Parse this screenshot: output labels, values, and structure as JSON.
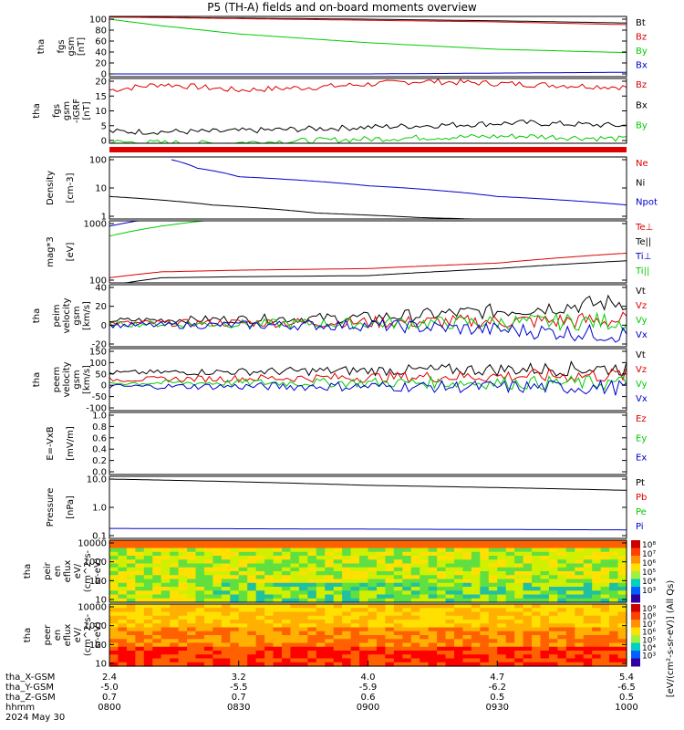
{
  "title": "P5 (TH-A) fields and on-board moments overview",
  "colors": {
    "black": "#000000",
    "red": "#dd0000",
    "green": "#00cc00",
    "blue": "#0000cc"
  },
  "chart_data": [
    {
      "type": "line",
      "ylabel_lines": [
        "tha",
        "fgs",
        "gsm",
        "[nT]"
      ],
      "yticks": [
        "100",
        "80",
        "60",
        "40",
        "20",
        "0"
      ],
      "legend": [
        {
          "label": "Bt",
          "color": "black"
        },
        {
          "label": "Bz",
          "color": "red"
        },
        {
          "label": "By",
          "color": "green"
        },
        {
          "label": "Bx",
          "color": "blue"
        }
      ],
      "series": [
        {
          "color": "black",
          "x": [
            0,
            0.25,
            0.5,
            0.75,
            1
          ],
          "y": [
            104,
            102,
            100,
            97,
            93
          ]
        },
        {
          "color": "red",
          "x": [
            0,
            0.25,
            0.5,
            0.75,
            1
          ],
          "y": [
            104,
            101,
            98,
            95,
            90
          ]
        },
        {
          "color": "green",
          "x": [
            0,
            0.1,
            0.25,
            0.5,
            0.75,
            1
          ],
          "y": [
            100,
            88,
            73,
            57,
            45,
            39
          ]
        },
        {
          "color": "blue",
          "x": [
            0,
            0.5,
            1
          ],
          "y": [
            0,
            0,
            3
          ]
        }
      ]
    },
    {
      "type": "line",
      "ylabel_lines": [
        "tha",
        "fgs",
        "gsm",
        "-IGRF",
        "[nT]"
      ],
      "yticks": [
        "20",
        "15",
        "10",
        "5",
        "0"
      ],
      "legend": [
        {
          "label": "Bz",
          "color": "red"
        },
        {
          "label": "Bx",
          "color": "black"
        },
        {
          "label": "By",
          "color": "green"
        }
      ],
      "series": [
        {
          "color": "red",
          "x": [
            0,
            0.1,
            0.25,
            0.4,
            0.6,
            0.8,
            1
          ],
          "y": [
            17,
            19,
            17,
            18,
            20,
            19,
            18
          ]
        },
        {
          "color": "black",
          "x": [
            0,
            0.2,
            0.4,
            0.6,
            0.8,
            1
          ],
          "y": [
            3,
            3,
            4,
            5,
            6,
            5
          ]
        },
        {
          "color": "green",
          "x": [
            0,
            0.2,
            0.4,
            0.6,
            0.8,
            1
          ],
          "y": [
            -0.5,
            -1,
            0,
            1,
            1.5,
            0.5
          ]
        }
      ]
    },
    {
      "type": "line",
      "ylabel_lines": [
        "Density",
        "[cm-3]"
      ],
      "yticks": [
        "100",
        "10",
        "1"
      ],
      "ylog": true,
      "legend": [
        {
          "label": "Ne",
          "color": "red"
        },
        {
          "label": "Ni",
          "color": "black"
        },
        {
          "label": "Npot",
          "color": "blue"
        }
      ],
      "series": [
        {
          "color": "blue",
          "x": [
            0.12,
            0.17,
            0.25,
            0.5,
            0.75,
            1
          ],
          "y": [
            100,
            50,
            25,
            12,
            5,
            2.5
          ]
        },
        {
          "color": "black",
          "x": [
            0,
            0.2,
            0.4,
            0.6,
            0.8,
            1
          ],
          "y": [
            5,
            2.5,
            1.3,
            0.9,
            0.7,
            0.6
          ]
        },
        {
          "color": "red",
          "x": [
            0,
            0.2,
            0.4,
            0.6,
            0.8,
            1
          ],
          "y": [
            0.5,
            0.55,
            0.7,
            0.65,
            0.6,
            0.65
          ]
        }
      ]
    },
    {
      "type": "line",
      "ylabel_lines": [
        "mag*3",
        "[eV]"
      ],
      "yticks": [
        "1000",
        "100"
      ],
      "ylog": true,
      "legend": [
        {
          "label": "Te⊥",
          "color": "red"
        },
        {
          "label": "Te||",
          "color": "black"
        },
        {
          "label": "Ti⊥",
          "color": "blue"
        },
        {
          "label": "Ti||",
          "color": "green"
        }
      ],
      "series": [
        {
          "color": "blue",
          "x": [
            0,
            0.1,
            0.25,
            0.5,
            0.75,
            1
          ],
          "y": [
            900,
            1300,
            1800,
            2100,
            2300,
            2400
          ]
        },
        {
          "color": "green",
          "x": [
            0,
            0.1,
            0.25,
            0.5,
            0.75,
            1
          ],
          "y": [
            600,
            900,
            1300,
            1450,
            1400,
            1300
          ]
        },
        {
          "color": "red",
          "x": [
            0,
            0.1,
            0.25,
            0.5,
            0.75,
            1
          ],
          "y": [
            110,
            140,
            150,
            160,
            200,
            300
          ]
        },
        {
          "color": "black",
          "x": [
            0,
            0.1,
            0.25,
            0.5,
            0.75,
            1
          ],
          "y": [
            80,
            110,
            115,
            120,
            160,
            220
          ]
        }
      ]
    },
    {
      "type": "line",
      "ylabel_lines": [
        "tha",
        "peim",
        "velocity",
        "gsm",
        "[km/s]"
      ],
      "yticks": [
        "40",
        "20",
        "0",
        "-20"
      ],
      "legend": [
        {
          "label": "Vt",
          "color": "black"
        },
        {
          "label": "Vz",
          "color": "red"
        },
        {
          "label": "Vy",
          "color": "green"
        },
        {
          "label": "Vx",
          "color": "blue"
        }
      ],
      "series": [
        {
          "color": "black",
          "x": [
            0,
            0.5,
            0.75,
            1
          ],
          "y": [
            5,
            8,
            15,
            25
          ]
        },
        {
          "color": "red",
          "x": [
            0,
            0.5,
            0.75,
            1
          ],
          "y": [
            2,
            3,
            4,
            5
          ]
        },
        {
          "color": "green",
          "x": [
            0,
            0.5,
            0.75,
            1
          ],
          "y": [
            1,
            2,
            3,
            4
          ]
        },
        {
          "color": "blue",
          "x": [
            0,
            0.5,
            0.75,
            1
          ],
          "y": [
            0,
            0,
            -5,
            -10
          ]
        }
      ]
    },
    {
      "type": "line",
      "ylabel_lines": [
        "tha",
        "peem",
        "velocity",
        "gsm",
        "[km/s]"
      ],
      "yticks": [
        "150",
        "100",
        "50",
        "0",
        "-50",
        "-100"
      ],
      "legend": [
        {
          "label": "Vt",
          "color": "black"
        },
        {
          "label": "Vz",
          "color": "red"
        },
        {
          "label": "Vy",
          "color": "green"
        },
        {
          "label": "Vx",
          "color": "blue"
        }
      ],
      "series": [
        {
          "color": "black",
          "x": [
            0,
            0.5,
            1
          ],
          "y": [
            55,
            65,
            75
          ]
        },
        {
          "color": "red",
          "x": [
            0,
            0.5,
            1
          ],
          "y": [
            25,
            35,
            45
          ]
        },
        {
          "color": "green",
          "x": [
            0,
            0.5,
            1
          ],
          "y": [
            10,
            12,
            10
          ]
        },
        {
          "color": "blue",
          "x": [
            0,
            0.5,
            1
          ],
          "y": [
            -5,
            -5,
            -10
          ]
        }
      ]
    },
    {
      "type": "line",
      "ylabel_lines": [
        "E=-VxB",
        "[mV/m]"
      ],
      "yticks": [
        "1.0",
        "0.8",
        "0.6",
        "0.4",
        "0.2",
        "0.0"
      ],
      "legend": [
        {
          "label": "Ez",
          "color": "red"
        },
        {
          "label": "Ey",
          "color": "green"
        },
        {
          "label": "Ex",
          "color": "blue"
        }
      ],
      "series": []
    },
    {
      "type": "line",
      "ylabel_lines": [
        "Pressure",
        "[nPa]"
      ],
      "yticks": [
        "10.0",
        "1.0",
        "0.1"
      ],
      "ylog": true,
      "legend": [
        {
          "label": "Pt",
          "color": "black"
        },
        {
          "label": "Pb",
          "color": "red"
        },
        {
          "label": "Pe",
          "color": "green"
        },
        {
          "label": "Pi",
          "color": "blue"
        }
      ],
      "series": [
        {
          "color": "black",
          "x": [
            0,
            0.25,
            0.5,
            0.75,
            1
          ],
          "y": [
            10,
            8,
            6,
            5,
            4
          ]
        },
        {
          "color": "blue",
          "x": [
            0,
            0.5,
            1
          ],
          "y": [
            0.18,
            0.17,
            0.16
          ]
        },
        {
          "color": "green",
          "x": [
            0,
            0.1,
            0.2,
            0.5,
            1
          ],
          "y": [
            0.02,
            0.03,
            0.05,
            0.05,
            0.06
          ]
        }
      ]
    },
    {
      "type": "heatmap",
      "ylabel_lines": [
        "tha",
        "peir",
        "en",
        "eflux",
        "eV/",
        "(cm^2-s-",
        "sr-eV)"
      ],
      "yticks": [
        "10000",
        "1000",
        "100",
        "10"
      ],
      "colorbar_ticks": [
        "10⁸",
        "10⁷",
        "10⁶",
        "10⁵",
        "10⁴",
        "10³"
      ]
    },
    {
      "type": "heatmap",
      "ylabel_lines": [
        "tha",
        "peer",
        "en",
        "eflux",
        "eV/",
        "(cm^2-s-",
        "sr-eV)"
      ],
      "yticks": [
        "10000",
        "1000",
        "100",
        "10"
      ],
      "colorbar_ticks": [
        "10⁹",
        "10⁸",
        "10⁷",
        "10⁶",
        "10⁵",
        "10⁴",
        "10³"
      ]
    }
  ],
  "colorbar_label": "[eV/(cm²-s-sr-eV)] (All Qs)",
  "xaxis": {
    "row_labels": [
      "tha_X-GSM",
      "tha_Y-GSM",
      "tha_Z-GSM",
      "hhmm",
      "2024 May 30"
    ],
    "columns": [
      [
        "2.4",
        "-5.0",
        "0.7",
        "0800"
      ],
      [
        "3.2",
        "-5.5",
        "0.7",
        "0830"
      ],
      [
        "4.0",
        "-5.9",
        "0.6",
        "0900"
      ],
      [
        "4.7",
        "-6.2",
        "0.5",
        "0930"
      ],
      [
        "5.4",
        "-6.5",
        "0.5",
        "1000"
      ]
    ]
  }
}
